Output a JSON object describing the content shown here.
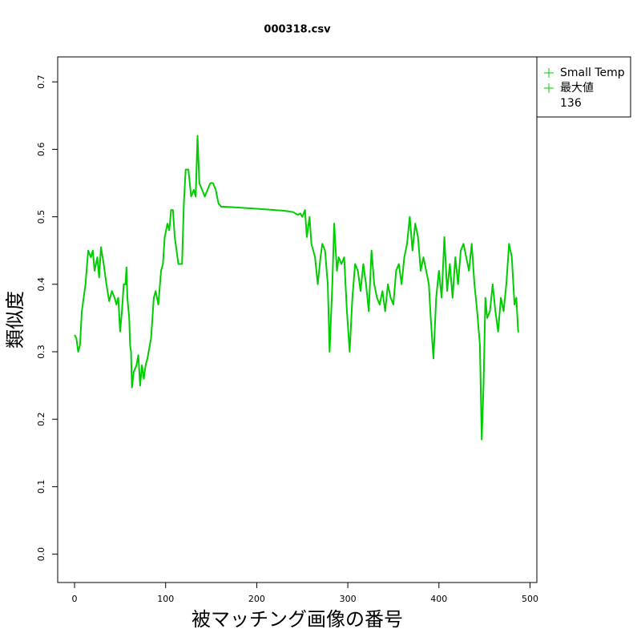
{
  "chart_data": {
    "type": "line",
    "title": "000318.csv",
    "x_label": "被マッチング画像の番号",
    "y_label": "類似度",
    "x": [
      0,
      2,
      4,
      6,
      8,
      12,
      15,
      18,
      20,
      22,
      25,
      27,
      29,
      32,
      35,
      38,
      41,
      44,
      46,
      48,
      50,
      52,
      54,
      56,
      57,
      58,
      60,
      61,
      62,
      63,
      65,
      68,
      70,
      72,
      74,
      76,
      78,
      80,
      84,
      87,
      89,
      92,
      95,
      97,
      99,
      102,
      104,
      106,
      108,
      110,
      112,
      114,
      118,
      120,
      122,
      125,
      128,
      131,
      133,
      135,
      137,
      140,
      143,
      146,
      149,
      152,
      155,
      158,
      161,
      165,
      200,
      230,
      240,
      245,
      248,
      250,
      253,
      255,
      258,
      260,
      264,
      267,
      270,
      272,
      275,
      278,
      280,
      283,
      285,
      288,
      290,
      293,
      296,
      299,
      302,
      305,
      308,
      311,
      314,
      317,
      320,
      323,
      326,
      329,
      332,
      335,
      338,
      341,
      344,
      347,
      350,
      353,
      356,
      359,
      362,
      365,
      368,
      371,
      374,
      377,
      380,
      383,
      386,
      389,
      391,
      394,
      397,
      400,
      403,
      406,
      409,
      412,
      415,
      418,
      421,
      424,
      427,
      430,
      433,
      436,
      439,
      442,
      445,
      447,
      449,
      451,
      453,
      456,
      459,
      462,
      465,
      468,
      471,
      474,
      477,
      480,
      483,
      485,
      487,
      488
    ],
    "series": [
      {
        "name": "Small Temp",
        "color": "#00cd00",
        "values": [
          0.325,
          0.32,
          0.3,
          0.31,
          0.36,
          0.4,
          0.45,
          0.44,
          0.45,
          0.42,
          0.44,
          0.41,
          0.455,
          0.43,
          0.4,
          0.375,
          0.39,
          0.38,
          0.37,
          0.38,
          0.33,
          0.36,
          0.4,
          0.4,
          0.425,
          0.38,
          0.35,
          0.31,
          0.3,
          0.247,
          0.27,
          0.28,
          0.295,
          0.25,
          0.28,
          0.26,
          0.28,
          0.29,
          0.32,
          0.38,
          0.39,
          0.37,
          0.42,
          0.43,
          0.47,
          0.49,
          0.48,
          0.51,
          0.51,
          0.47,
          0.45,
          0.43,
          0.43,
          0.52,
          0.57,
          0.57,
          0.53,
          0.54,
          0.53,
          0.62,
          0.55,
          0.54,
          0.53,
          0.54,
          0.55,
          0.55,
          0.54,
          0.52,
          0.515,
          0.515,
          0.512,
          0.509,
          0.507,
          0.503,
          0.505,
          0.5,
          0.51,
          0.47,
          0.5,
          0.46,
          0.44,
          0.4,
          0.44,
          0.46,
          0.45,
          0.4,
          0.3,
          0.4,
          0.49,
          0.42,
          0.44,
          0.43,
          0.44,
          0.36,
          0.3,
          0.38,
          0.43,
          0.42,
          0.39,
          0.43,
          0.4,
          0.36,
          0.45,
          0.4,
          0.38,
          0.37,
          0.39,
          0.36,
          0.4,
          0.38,
          0.37,
          0.42,
          0.43,
          0.4,
          0.44,
          0.46,
          0.5,
          0.45,
          0.49,
          0.47,
          0.42,
          0.44,
          0.42,
          0.4,
          0.35,
          0.29,
          0.38,
          0.42,
          0.38,
          0.47,
          0.39,
          0.43,
          0.38,
          0.44,
          0.4,
          0.45,
          0.46,
          0.44,
          0.42,
          0.46,
          0.4,
          0.36,
          0.31,
          0.17,
          0.25,
          0.38,
          0.35,
          0.36,
          0.4,
          0.36,
          0.33,
          0.38,
          0.36,
          0.4,
          0.46,
          0.44,
          0.37,
          0.38,
          0.33,
          0.33
        ]
      }
    ],
    "legend_extra": [
      {
        "label": "最大値",
        "marker": true
      },
      {
        "label": "136",
        "marker": false
      }
    ],
    "xlim": [
      -18.5,
      507.5
    ],
    "ylim": [
      -0.042,
      0.737
    ],
    "xticks": [
      0,
      100,
      200,
      300,
      400,
      500
    ],
    "yticks": [
      {
        "value": 0,
        "label": "0.0"
      },
      0.1,
      0.2,
      0.3,
      0.4,
      0.5,
      0.6,
      0.7
    ]
  }
}
